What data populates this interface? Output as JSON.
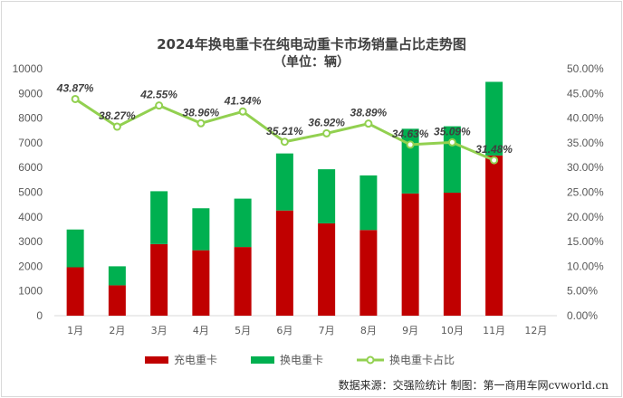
{
  "title": "2024年换电重卡在纯电动重卡市场销量占比走势图",
  "subtitle": "（单位：辆）",
  "source": "数据来源：交强险统计 制图：第一商用车网cvworld.cn",
  "chart_data": {
    "type": "bar",
    "stacked": true,
    "title": "2024年换电重卡在纯电动重卡市场销量占比走势图",
    "subtitle": "（单位：辆）",
    "categories": [
      "1月",
      "2月",
      "3月",
      "4月",
      "5月",
      "6月",
      "7月",
      "8月",
      "9月",
      "10月",
      "11月",
      "12月"
    ],
    "series": [
      {
        "name": "充电重卡",
        "type": "bar",
        "color": "#c00000",
        "values": [
          1960,
          1230,
          2900,
          2650,
          2780,
          4260,
          3740,
          3470,
          4950,
          4980,
          6490,
          null
        ]
      },
      {
        "name": "换电重卡",
        "type": "bar",
        "color": "#00b050",
        "values": [
          1530,
          770,
          2140,
          1700,
          1960,
          2310,
          2190,
          2210,
          2620,
          2690,
          2980,
          null
        ]
      },
      {
        "name": "换电重卡占比",
        "type": "line",
        "axis": "right",
        "color": "#92d050",
        "values": [
          43.87,
          38.27,
          42.55,
          38.96,
          41.34,
          35.21,
          36.92,
          38.89,
          34.63,
          35.09,
          31.48,
          null
        ],
        "labels": [
          "43.87%",
          "38.27%",
          "42.55%",
          "38.96%",
          "41.34%",
          "35.21%",
          "36.92%",
          "38.89%",
          "34.63%",
          "35.09%",
          "31.48%",
          ""
        ]
      }
    ],
    "ylim": [
      0,
      10000
    ],
    "yticks": [
      "0",
      "1000",
      "2000",
      "3000",
      "4000",
      "5000",
      "6000",
      "7000",
      "8000",
      "9000",
      "10000"
    ],
    "y2lim": [
      0,
      50
    ],
    "y2ticks": [
      "0.00%",
      "5.00%",
      "10.00%",
      "15.00%",
      "20.00%",
      "25.00%",
      "30.00%",
      "35.00%",
      "40.00%",
      "45.00%",
      "50.00%"
    ],
    "grid": false,
    "legend": "bottom"
  }
}
